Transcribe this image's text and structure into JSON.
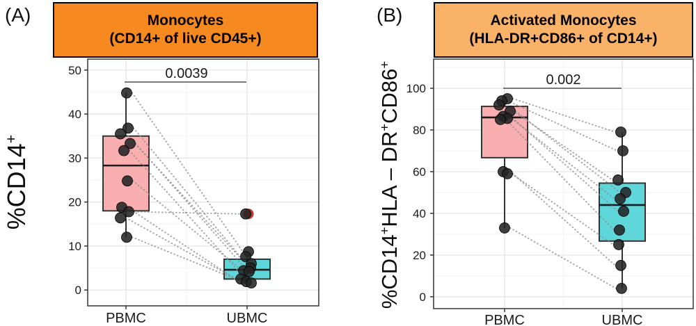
{
  "figure": {
    "panel_labels": [
      "(A)",
      "(B)"
    ],
    "background": "#FFFFFF",
    "colors": {
      "header_a": "#F6891F",
      "header_b": "#FAB269",
      "box_pbmc": "#F9AEB0",
      "box_ubmc": "#5FD6DA",
      "point": "#242424",
      "pair_line": "#8E8E8E",
      "outlier": "#C0392B",
      "grid_major": "#E2E2E2",
      "grid_minor": "#F2F2F2",
      "panel_border": "#404040"
    }
  },
  "chart_data": [
    {
      "panel": "A",
      "type": "box",
      "title": "Monocytes",
      "subtitle": "(CD14+ of live CD45+)",
      "header_bg": "#F6891F",
      "p_value": "0.0039",
      "categories": [
        "PBMC",
        "UBMC"
      ],
      "ylabel": "%CD14+",
      "ylabel_segments": [
        [
          "%CD14",
          false
        ],
        [
          "+",
          true
        ]
      ],
      "ylim": [
        -3.6,
        52.5
      ],
      "yticks": [
        0,
        10,
        20,
        30,
        40,
        50
      ],
      "grid": true,
      "legend": "none",
      "groups": [
        {
          "name": "PBMC",
          "fill": "#F9AEB0",
          "box": {
            "q1": 18.0,
            "median": 28.3,
            "q3": 35.0,
            "whisker_low": 12.0,
            "whisker_high": 44.8
          },
          "points": [
            {
              "v": 44.8,
              "dx": 1
            },
            {
              "v": 36.8,
              "dx": 3
            },
            {
              "v": 35.5,
              "dx": -8
            },
            {
              "v": 33.3,
              "dx": 6
            },
            {
              "v": 31.7,
              "dx": -3
            },
            {
              "v": 24.8,
              "dx": 2
            },
            {
              "v": 18.8,
              "dx": -6
            },
            {
              "v": 17.8,
              "dx": 4
            },
            {
              "v": 16.4,
              "dx": -8
            },
            {
              "v": 12.0,
              "dx": 1
            }
          ]
        },
        {
          "name": "UBMC",
          "fill": "#5FD6DA",
          "box": {
            "q1": 2.5,
            "median": 4.6,
            "q3": 7.0,
            "whisker_low": 1.6,
            "whisker_high": 8.7
          },
          "outliers": [
            {
              "v": 17.3,
              "dx": 2,
              "color": "#C0392B"
            }
          ],
          "points": [
            {
              "v": 17.3,
              "dx": -2
            },
            {
              "v": 8.7,
              "dx": 2
            },
            {
              "v": 7.6,
              "dx": -2
            },
            {
              "v": 6.0,
              "dx": 6
            },
            {
              "v": 5.0,
              "dx": 5
            },
            {
              "v": 4.4,
              "dx": -5
            },
            {
              "v": 4.2,
              "dx": 3
            },
            {
              "v": 2.5,
              "dx": -9
            },
            {
              "v": 1.9,
              "dx": -1
            },
            {
              "v": 1.6,
              "dx": 6
            }
          ]
        }
      ],
      "pairs": [
        [
          0,
          1
        ],
        [
          1,
          2
        ],
        [
          2,
          3
        ],
        [
          3,
          4
        ],
        [
          4,
          5
        ],
        [
          5,
          6
        ],
        [
          6,
          7
        ],
        [
          7,
          0
        ],
        [
          8,
          8
        ],
        [
          9,
          9
        ]
      ]
    },
    {
      "panel": "B",
      "type": "box",
      "title": "Activated Monocytes",
      "subtitle": "(HLA-DR+CD86+ of CD14+)",
      "header_bg": "#FAB269",
      "p_value": "0.002",
      "categories": [
        "PBMC",
        "UBMC"
      ],
      "ylabel": "%CD14+HLA – DR+CD86+",
      "ylabel_segments": [
        [
          "%CD14",
          false
        ],
        [
          "+",
          true
        ],
        [
          "HLA – DR",
          false
        ],
        [
          "+",
          true
        ],
        [
          "CD86",
          false
        ],
        [
          "+",
          true
        ]
      ],
      "ylim": [
        -5.7,
        114
      ],
      "yticks": [
        0,
        20,
        40,
        60,
        80,
        100
      ],
      "grid": true,
      "legend": "none",
      "groups": [
        {
          "name": "PBMC",
          "fill": "#F9AEB0",
          "box": {
            "q1": 66.7,
            "median": 86.0,
            "q3": 91.3,
            "whisker_low": 33.0,
            "whisker_high": 95.0
          },
          "points": [
            {
              "v": 95,
              "dx": 4
            },
            {
              "v": 94,
              "dx": -4
            },
            {
              "v": 92,
              "dx": -8
            },
            {
              "v": 89,
              "dx": 8
            },
            {
              "v": 86.5,
              "dx": -2
            },
            {
              "v": 85.5,
              "dx": 4
            },
            {
              "v": 85,
              "dx": -6
            },
            {
              "v": 60,
              "dx": -2
            },
            {
              "v": 59,
              "dx": 4
            },
            {
              "v": 33,
              "dx": 0
            }
          ]
        },
        {
          "name": "UBMC",
          "fill": "#5FD6DA",
          "box": {
            "q1": 26.7,
            "median": 44.0,
            "q3": 54.5,
            "whisker_low": 4.0,
            "whisker_high": 79.0
          },
          "points": [
            {
              "v": 79,
              "dx": -2
            },
            {
              "v": 70,
              "dx": 1
            },
            {
              "v": 56,
              "dx": -6
            },
            {
              "v": 50,
              "dx": 5
            },
            {
              "v": 47,
              "dx": -3
            },
            {
              "v": 41,
              "dx": 2
            },
            {
              "v": 32,
              "dx": -4
            },
            {
              "v": 25,
              "dx": -5
            },
            {
              "v": 15,
              "dx": -2
            },
            {
              "v": 4,
              "dx": -1
            }
          ]
        }
      ],
      "pairs": [
        [
          0,
          0
        ],
        [
          1,
          1
        ],
        [
          2,
          2
        ],
        [
          3,
          3
        ],
        [
          4,
          4
        ],
        [
          5,
          5
        ],
        [
          6,
          6
        ],
        [
          7,
          7
        ],
        [
          8,
          8
        ],
        [
          9,
          9
        ]
      ]
    }
  ]
}
